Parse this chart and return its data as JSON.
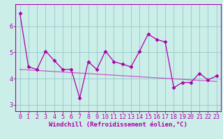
{
  "x": [
    0,
    1,
    2,
    3,
    4,
    5,
    6,
    7,
    8,
    9,
    10,
    11,
    12,
    13,
    14,
    15,
    16,
    17,
    18,
    19,
    20,
    21,
    22,
    23
  ],
  "y_data": [
    6.5,
    4.45,
    4.35,
    5.05,
    4.7,
    4.35,
    4.35,
    3.25,
    4.65,
    4.35,
    5.05,
    4.65,
    4.55,
    4.45,
    5.05,
    5.7,
    5.5,
    5.4,
    3.65,
    3.85,
    3.85,
    4.2,
    3.95,
    4.1
  ],
  "y_trend": [
    4.35,
    4.33,
    4.31,
    4.29,
    4.27,
    4.25,
    4.23,
    4.21,
    4.19,
    4.17,
    4.15,
    4.13,
    4.11,
    4.09,
    4.07,
    4.05,
    4.03,
    4.01,
    3.99,
    3.97,
    3.95,
    3.93,
    3.91,
    3.89
  ],
  "line_color": "#aa00aa",
  "trend_color": "#cc55cc",
  "bg_color": "#cceee8",
  "grid_color": "#99cccc",
  "spine_color": "#aa00aa",
  "xlabel": "Windchill (Refroidissement éolien,°C)",
  "xlim": [
    -0.5,
    23.5
  ],
  "ylim": [
    2.75,
    6.85
  ],
  "yticks": [
    3,
    4,
    5,
    6
  ],
  "xticks": [
    0,
    1,
    2,
    3,
    4,
    5,
    6,
    7,
    8,
    9,
    10,
    11,
    12,
    13,
    14,
    15,
    16,
    17,
    18,
    19,
    20,
    21,
    22,
    23
  ],
  "xlabel_fontsize": 6.5,
  "tick_fontsize": 6.0,
  "marker": "D",
  "markersize": 2.5,
  "linewidth": 0.9
}
